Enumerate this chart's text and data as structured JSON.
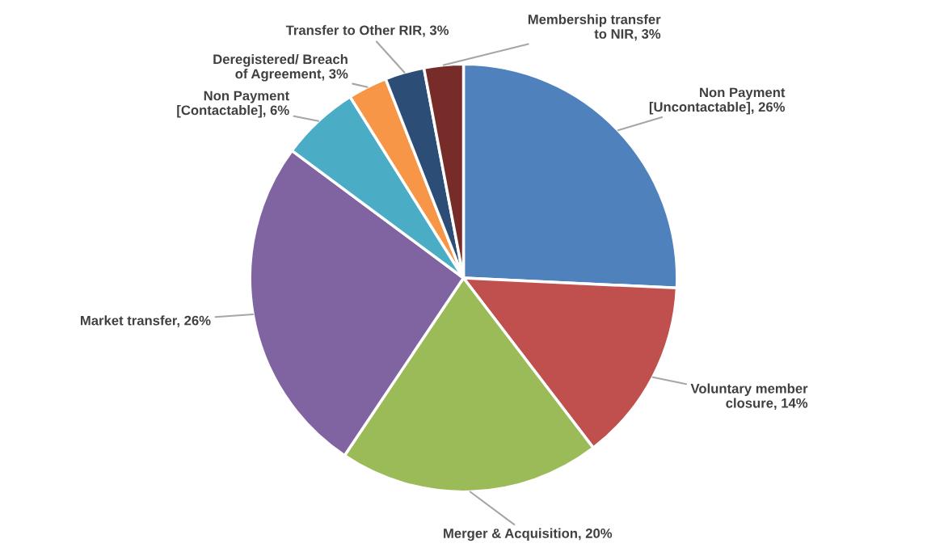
{
  "chart_data": {
    "type": "pie",
    "categories": [
      "Non Payment\n[Uncontactable]",
      "Voluntary member\nclosure",
      "Merger & Acquisition",
      "Market transfer",
      "Non Payment\n[Contactable]",
      "Deregistered/ Breach\nof Agreement",
      "Transfer to Other RIR",
      "Membership transfer\nto NIR"
    ],
    "values": [
      26,
      14,
      20,
      26,
      6,
      3,
      3,
      3
    ],
    "value_labels": [
      "26%",
      "14%",
      "20%",
      "26%",
      "6%",
      "3%",
      "3%",
      "3%"
    ],
    "colors": [
      "#4f81bd",
      "#c0504d",
      "#9bbb59",
      "#8064a2",
      "#4bacc6",
      "#f79646",
      "#2c4d75",
      "#772c2a"
    ]
  }
}
